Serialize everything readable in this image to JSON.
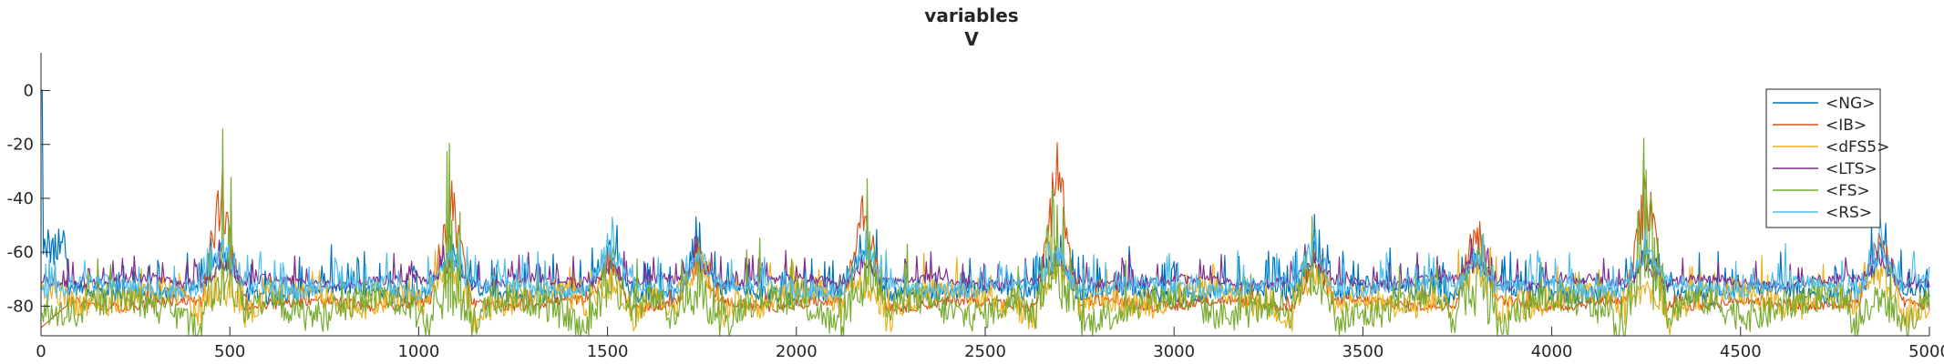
{
  "chart_data": {
    "type": "line",
    "title": "variables",
    "subtitle": "V",
    "xlabel": "",
    "ylabel": "",
    "xlim": [
      0,
      5000
    ],
    "ylim": [
      -91,
      14
    ],
    "xticks": [
      0,
      500,
      1000,
      1500,
      2000,
      2500,
      3000,
      3500,
      4000,
      4500,
      5000
    ],
    "yticks": [
      0,
      -20,
      -40,
      -60,
      -80
    ],
    "legend_position": "top-right",
    "grid": false,
    "bursts": [
      {
        "x": 480,
        "ib": -22,
        "fs": -1
      },
      {
        "x": 1085,
        "ib": -30,
        "fs": -2
      },
      {
        "x": 1505,
        "ib": -57,
        "fs": -55
      },
      {
        "x": 1740,
        "ib": -56,
        "fs": -49
      },
      {
        "x": 2180,
        "ib": -33,
        "fs": -23
      },
      {
        "x": 2690,
        "ib": -16,
        "fs": -16
      },
      {
        "x": 3370,
        "ib": -57,
        "fs": -49
      },
      {
        "x": 3800,
        "ib": -42,
        "fs": -41
      },
      {
        "x": 4250,
        "ib": -25,
        "fs": -10
      },
      {
        "x": 4870,
        "ib": -47,
        "fs": -65
      }
    ],
    "series": [
      {
        "name": "<NG>",
        "color": "#0072BD",
        "baseline": -75,
        "noise": 3,
        "spike_rate": 0.18,
        "spike_height": 14
      },
      {
        "name": "<IB>",
        "color": "#D95319",
        "baseline": -79,
        "noise": 2,
        "spike_rate": 0.03,
        "spike_height": 6
      },
      {
        "name": "<dFS5>",
        "color": "#EDB120",
        "baseline": -77,
        "noise": 5,
        "spike_rate": 0.1,
        "spike_height": 12
      },
      {
        "name": "<LTS>",
        "color": "#7E2F8E",
        "baseline": -71,
        "noise": 2,
        "spike_rate": 0.12,
        "spike_height": 10
      },
      {
        "name": "<FS>",
        "color": "#77AC30",
        "baseline": -80,
        "noise": 6,
        "spike_rate": 0.06,
        "spike_height": 18
      },
      {
        "name": "<RS>",
        "color": "#4DBEEE",
        "baseline": -73,
        "noise": 3,
        "spike_rate": 0.14,
        "spike_height": 12
      }
    ]
  }
}
